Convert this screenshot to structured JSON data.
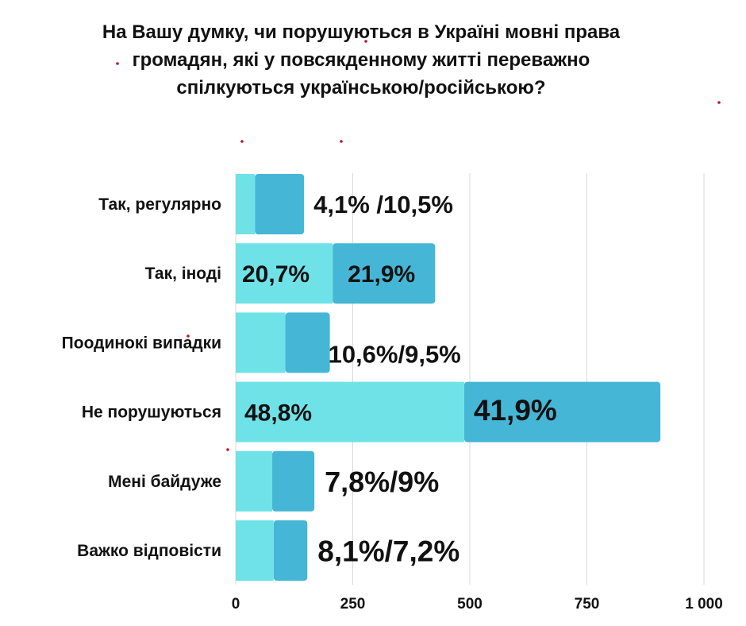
{
  "chart_data": {
    "type": "bar",
    "orientation": "horizontal",
    "stacked": true,
    "title": "На Вашу думку, чи порушуються в Україні мовні права громадян, які у повсякденному житті переважно спілкуються українською/російською?",
    "title_lines": [
      "На Вашу думку, чи порушуються в Україні мовні права",
      "громадян, які у повсякденному житті переважно",
      "спілкуються українською/російською?"
    ],
    "categories": [
      "Так, регулярно",
      "Так, іноді",
      "Поодинокі випадки",
      "Не порушуються",
      "Мені байдуже",
      "Важко відповісти"
    ],
    "series": [
      {
        "values": [
          41,
          207,
          106,
          488,
          78,
          81
        ]
      },
      {
        "values": [
          105,
          219,
          95,
          419,
          90,
          72
        ]
      }
    ],
    "data_labels": [
      "4,1% /10,5%",
      "20,7%",
      "21,9%",
      "10,6%/9,5%",
      "48,8%",
      "41,9%",
      "7,8%/9%",
      "8,1%/7,2%"
    ],
    "x_ticks": [
      "0",
      "250",
      "500",
      "750",
      "1 000"
    ],
    "xlim": [
      0,
      1000
    ],
    "grid": "vertical",
    "legend": "none",
    "colors": {
      "series_1": "#6fe2e8",
      "series_2": "#45b6d6",
      "grid": "#d9d9d9",
      "text": "#111111"
    }
  }
}
